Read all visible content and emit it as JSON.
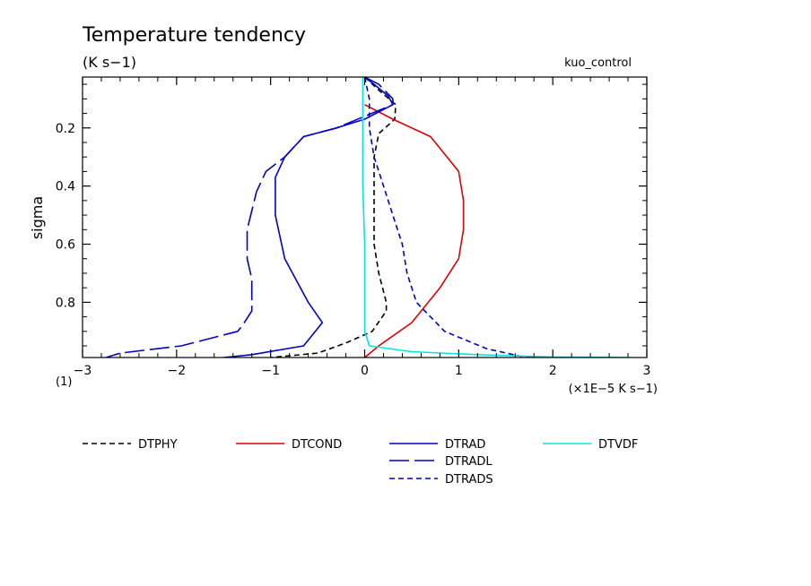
{
  "chart_data": {
    "type": "line",
    "title": "Temperature tendency",
    "subtitle": "(K s−1)",
    "run_label": "kuo_control",
    "xlabel": "(×1E−5 K s−1)",
    "ylabel": "sigma",
    "corner_label": "(1)",
    "xlim": [
      -3,
      3
    ],
    "ylim": [
      0.99,
      0.025
    ],
    "x_ticks": [
      -3,
      -2,
      -1,
      0,
      1,
      2,
      3
    ],
    "x_tick_labels": [
      "−3",
      "−2",
      "−1",
      "0",
      "1",
      "2",
      "3"
    ],
    "y_ticks": [
      0.2,
      0.4,
      0.6,
      0.8
    ],
    "y_tick_labels": [
      "0.2",
      "0.4",
      "0.6",
      "0.8"
    ],
    "grid": false,
    "legend_position": "bottom",
    "series": [
      {
        "name": "DTPHY",
        "color": "#000000",
        "dash": "short",
        "points": [
          [
            0.0,
            0.025
          ],
          [
            0.15,
            0.07
          ],
          [
            0.33,
            0.12
          ],
          [
            0.32,
            0.17
          ],
          [
            0.15,
            0.22
          ],
          [
            0.1,
            0.3
          ],
          [
            0.1,
            0.45
          ],
          [
            0.1,
            0.6
          ],
          [
            0.15,
            0.7
          ],
          [
            0.23,
            0.8
          ],
          [
            0.23,
            0.83
          ],
          [
            0.08,
            0.9
          ],
          [
            -0.2,
            0.94
          ],
          [
            -0.5,
            0.975
          ],
          [
            -1.0,
            0.99
          ]
        ]
      },
      {
        "name": "DTCOND",
        "color": "#e00000",
        "dash": "solid",
        "points": [
          [
            0.0,
            0.12
          ],
          [
            0.3,
            0.17
          ],
          [
            0.7,
            0.23
          ],
          [
            1.0,
            0.35
          ],
          [
            1.05,
            0.45
          ],
          [
            1.05,
            0.55
          ],
          [
            1.0,
            0.65
          ],
          [
            0.8,
            0.75
          ],
          [
            0.5,
            0.87
          ],
          [
            0.15,
            0.95
          ],
          [
            0.0,
            0.99
          ]
        ]
      },
      {
        "name": "DTRAD",
        "color": "#0000c8",
        "dash": "solid",
        "points": [
          [
            0.0,
            0.025
          ],
          [
            0.1,
            0.05
          ],
          [
            0.25,
            0.09
          ],
          [
            0.3,
            0.12
          ],
          [
            0.0,
            0.17
          ],
          [
            -0.3,
            0.2
          ],
          [
            -0.65,
            0.23
          ],
          [
            -0.85,
            0.3
          ],
          [
            -0.95,
            0.37
          ],
          [
            -0.95,
            0.5
          ],
          [
            -0.85,
            0.65
          ],
          [
            -0.6,
            0.8
          ],
          [
            -0.45,
            0.87
          ],
          [
            -0.65,
            0.95
          ],
          [
            -1.2,
            0.98
          ],
          [
            -1.5,
            0.99
          ]
        ]
      },
      {
        "name": "DTRADL",
        "color": "#0000c8",
        "dash": "long",
        "points": [
          [
            0.0,
            0.025
          ],
          [
            0.15,
            0.05
          ],
          [
            0.3,
            0.1
          ],
          [
            0.3,
            0.12
          ],
          [
            0.0,
            0.16
          ],
          [
            -0.3,
            0.2
          ],
          [
            -0.65,
            0.23
          ],
          [
            -0.85,
            0.3
          ],
          [
            -1.05,
            0.35
          ],
          [
            -1.15,
            0.42
          ],
          [
            -1.25,
            0.55
          ],
          [
            -1.25,
            0.65
          ],
          [
            -1.2,
            0.72
          ],
          [
            -1.2,
            0.83
          ],
          [
            -1.3,
            0.88
          ],
          [
            -1.35,
            0.9
          ],
          [
            -1.95,
            0.95
          ],
          [
            -2.6,
            0.975
          ],
          [
            -2.75,
            0.99
          ]
        ]
      },
      {
        "name": "DTRADS",
        "color": "#0000c8",
        "dash": "short",
        "points": [
          [
            0.0,
            0.025
          ],
          [
            0.05,
            0.1
          ],
          [
            0.05,
            0.2
          ],
          [
            0.1,
            0.3
          ],
          [
            0.2,
            0.4
          ],
          [
            0.3,
            0.5
          ],
          [
            0.4,
            0.6
          ],
          [
            0.45,
            0.7
          ],
          [
            0.55,
            0.8
          ],
          [
            0.85,
            0.9
          ],
          [
            1.3,
            0.96
          ],
          [
            1.65,
            0.985
          ],
          [
            1.9,
            0.99
          ]
        ]
      },
      {
        "name": "DTVDF",
        "color": "#00e6e6",
        "dash": "solid",
        "points": [
          [
            -0.02,
            0.025
          ],
          [
            -0.02,
            0.1
          ],
          [
            -0.02,
            0.2
          ],
          [
            -0.02,
            0.4
          ],
          [
            0.0,
            0.6
          ],
          [
            0.0,
            0.8
          ],
          [
            0.0,
            0.9
          ],
          [
            0.05,
            0.95
          ],
          [
            0.5,
            0.97
          ],
          [
            1.2,
            0.98
          ],
          [
            2.0,
            0.988
          ],
          [
            2.8,
            0.99
          ]
        ]
      }
    ]
  }
}
